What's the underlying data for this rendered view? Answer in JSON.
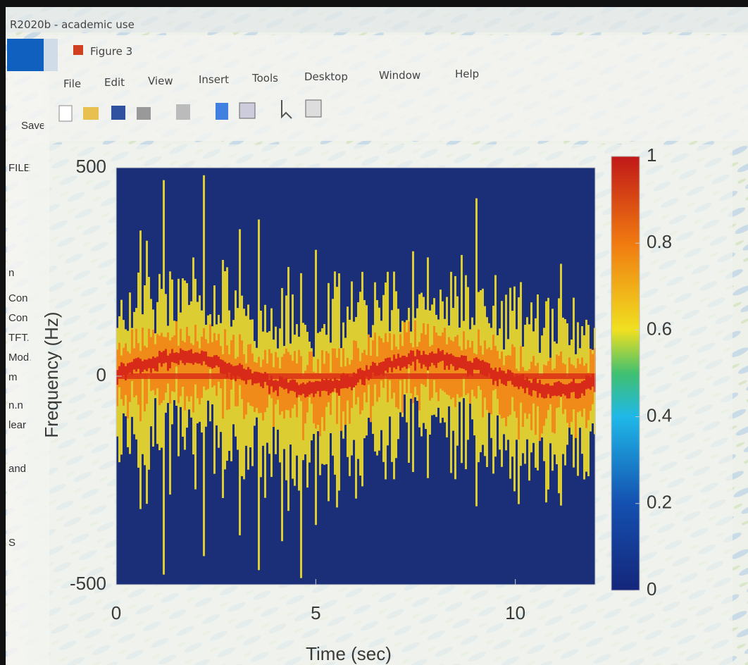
{
  "window": {
    "title": "R2020b - academic use",
    "sidebar": [
      "Save",
      "FILE",
      "n",
      "Con",
      "Con",
      "TFT.",
      "Mod.",
      "m",
      "n.n",
      "lear",
      "and",
      "S"
    ]
  },
  "figure": {
    "title": "Figure 3",
    "menu": [
      "File",
      "Edit",
      "View",
      "Insert",
      "Tools",
      "Desktop",
      "Window",
      "Help"
    ],
    "plot": {
      "type": "heatmap",
      "xlabel": "Time (sec)",
      "ylabel": "Frequency (Hz)",
      "xlim": [
        0,
        12
      ],
      "ylim": [
        -500,
        500
      ],
      "xticks": [
        0,
        5,
        10
      ],
      "yticks": [
        -500,
        0,
        500
      ],
      "colorbar": {
        "clim": [
          0,
          1
        ],
        "ticks": [
          0,
          0.2,
          0.4,
          0.6,
          0.8,
          1
        ]
      }
    }
  }
}
